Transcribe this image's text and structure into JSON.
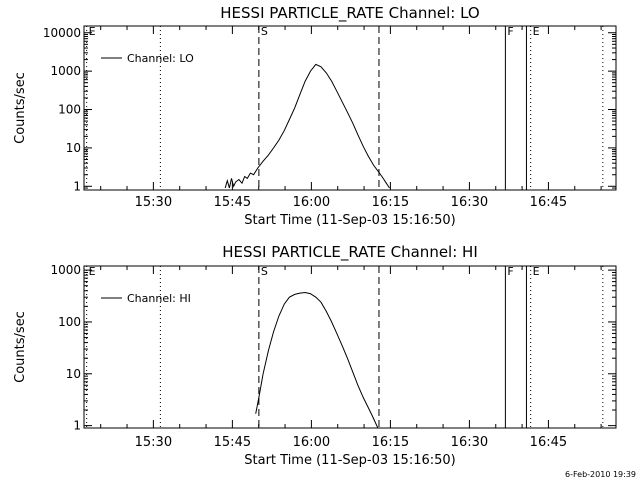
{
  "footer_date": "6-Feb-2010 19:39",
  "chart_data": [
    {
      "type": "line",
      "title": "HESSI PARTICLE_RATE Channel: LO",
      "xlabel": "Start Time (11-Sep-03 15:16:50)",
      "ylabel": "Counts/sec",
      "yscale": "log",
      "x_unit": "minutes after 15:16:50",
      "xlim": [
        0,
        101
      ],
      "ylim": [
        0.8,
        15000
      ],
      "x_ticks": [
        {
          "t": 13.17,
          "label": "15:30"
        },
        {
          "t": 28.17,
          "label": "15:45"
        },
        {
          "t": 43.17,
          "label": "16:00"
        },
        {
          "t": 58.17,
          "label": "16:15"
        },
        {
          "t": 73.17,
          "label": "16:30"
        },
        {
          "t": 88.17,
          "label": "16:45"
        }
      ],
      "y_ticks": [
        {
          "v": 1,
          "label": "1"
        },
        {
          "v": 10,
          "label": "10"
        },
        {
          "v": 100,
          "label": "100"
        },
        {
          "v": 1000,
          "label": "1000"
        },
        {
          "v": 10000,
          "label": "10000"
        }
      ],
      "legend": "Channel: LO",
      "series": [
        {
          "name": "Channel: LO",
          "x": [
            26.8,
            27.2,
            27.6,
            28.0,
            28.4,
            28.8,
            29.4,
            30.0,
            30.5,
            31.0,
            31.6,
            32.2,
            33.0,
            34.0,
            35.0,
            36.0,
            37.0,
            38.0,
            39.0,
            40.0,
            41.0,
            42.0,
            43.0,
            44.0,
            45.0,
            46.0,
            47.0,
            48.0,
            49.0,
            50.0,
            51.0,
            52.0,
            53.0,
            54.0,
            55.0,
            56.0,
            56.8,
            57.4,
            58.0
          ],
          "y": [
            0.9,
            1.4,
            0.9,
            1.6,
            1.0,
            1.3,
            1.5,
            1.2,
            1.8,
            1.6,
            2.2,
            2.0,
            3.0,
            4.5,
            6.5,
            10,
            16,
            28,
            55,
            110,
            250,
            550,
            1000,
            1500,
            1300,
            900,
            550,
            300,
            160,
            85,
            45,
            22,
            11,
            6,
            3.5,
            2.3,
            1.6,
            1.2,
            0.9
          ]
        }
      ],
      "markers": [
        {
          "t": 0.5,
          "style": "dotted",
          "label": "E"
        },
        {
          "t": 14.5,
          "style": "dotted",
          "label": ""
        },
        {
          "t": 33.2,
          "style": "dashed",
          "label": "S"
        },
        {
          "t": 56.0,
          "style": "dashed",
          "label": ""
        },
        {
          "t": 80.0,
          "style": "solid",
          "label": "F"
        },
        {
          "t": 84.0,
          "style": "solid",
          "label": ""
        },
        {
          "t": 84.8,
          "style": "dotted",
          "label": "E"
        },
        {
          "t": 98.5,
          "style": "dotted",
          "label": ""
        }
      ]
    },
    {
      "type": "line",
      "title": "HESSI PARTICLE_RATE Channel: HI",
      "xlabel": "Start Time (11-Sep-03 15:16:50)",
      "ylabel": "Counts/sec",
      "yscale": "log",
      "x_unit": "minutes after 15:16:50",
      "xlim": [
        0,
        101
      ],
      "ylim": [
        0.9,
        1200
      ],
      "x_ticks": [
        {
          "t": 13.17,
          "label": "15:30"
        },
        {
          "t": 28.17,
          "label": "15:45"
        },
        {
          "t": 43.17,
          "label": "16:00"
        },
        {
          "t": 58.17,
          "label": "16:15"
        },
        {
          "t": 73.17,
          "label": "16:30"
        },
        {
          "t": 88.17,
          "label": "16:45"
        }
      ],
      "y_ticks": [
        {
          "v": 1,
          "label": "1"
        },
        {
          "v": 10,
          "label": "10"
        },
        {
          "v": 100,
          "label": "100"
        },
        {
          "v": 1000,
          "label": "1000"
        }
      ],
      "legend": "Channel: HI",
      "series": [
        {
          "name": "Channel: HI",
          "x": [
            32.6,
            33.2,
            34.0,
            35.0,
            36.0,
            37.0,
            38.0,
            39.0,
            40.0,
            41.0,
            42.0,
            43.0,
            44.0,
            45.0,
            46.0,
            47.0,
            48.0,
            49.0,
            50.0,
            51.0,
            52.0,
            53.0,
            54.0,
            54.8,
            55.4,
            55.8
          ],
          "y": [
            1.7,
            3.5,
            10,
            28,
            65,
            130,
            220,
            300,
            340,
            360,
            370,
            350,
            300,
            240,
            160,
            100,
            60,
            35,
            20,
            11,
            6,
            3.5,
            2.2,
            1.5,
            1.1,
            0.9
          ]
        }
      ],
      "markers": [
        {
          "t": 0.5,
          "style": "dotted",
          "label": "E"
        },
        {
          "t": 14.5,
          "style": "dotted",
          "label": ""
        },
        {
          "t": 33.2,
          "style": "dashed",
          "label": "S"
        },
        {
          "t": 56.0,
          "style": "dashed",
          "label": ""
        },
        {
          "t": 80.0,
          "style": "solid",
          "label": "F"
        },
        {
          "t": 84.0,
          "style": "solid",
          "label": ""
        },
        {
          "t": 84.8,
          "style": "dotted",
          "label": "E"
        },
        {
          "t": 98.5,
          "style": "dotted",
          "label": ""
        }
      ]
    }
  ]
}
